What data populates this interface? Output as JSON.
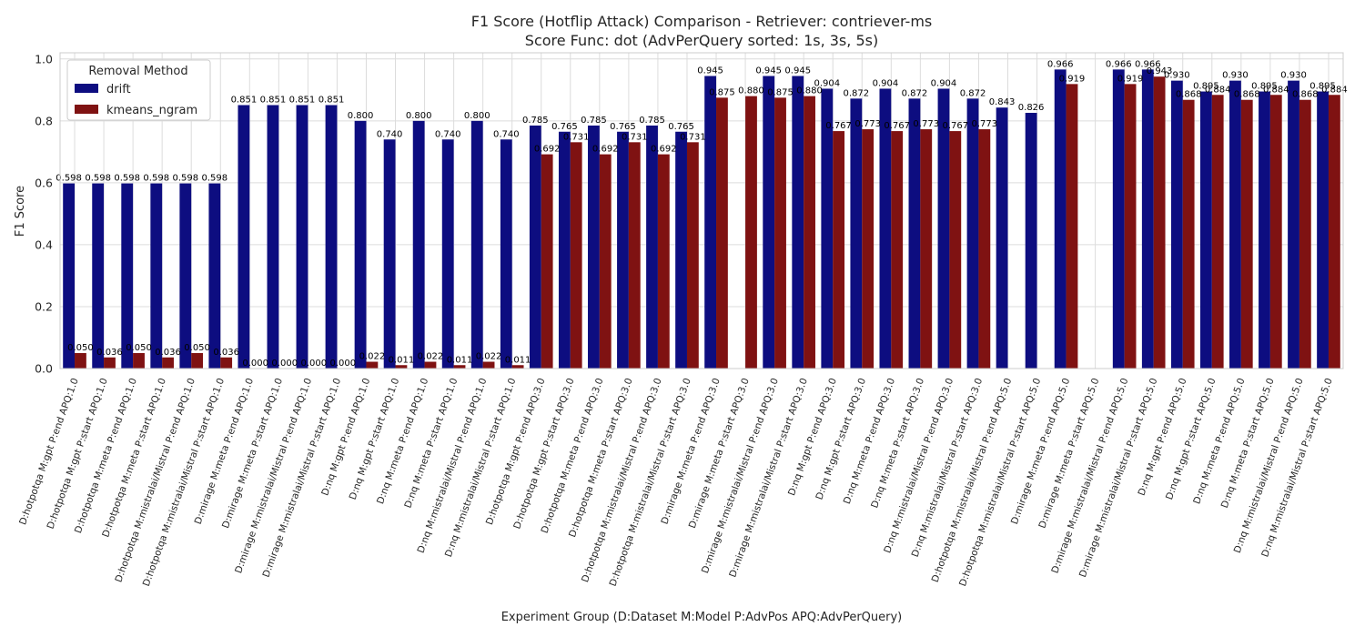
{
  "chart_data": {
    "type": "bar",
    "title": "F1 Score (Hotflip Attack) Comparison - Retriever: contriever-ms",
    "subtitle": "Score Func: dot (AdvPerQuery sorted: 1s, 3s, 5s)",
    "xlabel": "Experiment Group (D:Dataset M:Model P:AdvPos APQ:AdvPerQuery)",
    "ylabel": "F1 Score",
    "ylim": [
      0,
      1.02
    ],
    "yticks": [
      "0.0",
      "0.2",
      "0.4",
      "0.6",
      "0.8",
      "1.0"
    ],
    "grid": true,
    "legend": {
      "title": "Removal Method",
      "position": "top-left"
    },
    "categories": [
      "D:hotpotqa M:gpt P:end APQ:1.0",
      "D:hotpotqa M:gpt P:start APQ:1.0",
      "D:hotpotqa M:meta P:end APQ:1.0",
      "D:hotpotqa M:meta P:start APQ:1.0",
      "D:hotpotqa M:mistralai/Mistral P:end APQ:1.0",
      "D:hotpotqa M:mistralai/Mistral P:start APQ:1.0",
      "D:mirage M:meta P:end APQ:1.0",
      "D:mirage M:meta P:start APQ:1.0",
      "D:mirage M:mistralai/Mistral P:end APQ:1.0",
      "D:mirage M:mistralai/Mistral P:start APQ:1.0",
      "D:nq M:gpt P:end APQ:1.0",
      "D:nq M:gpt P:start APQ:1.0",
      "D:nq M:meta P:end APQ:1.0",
      "D:nq M:meta P:start APQ:1.0",
      "D:nq M:mistralai/Mistral P:end APQ:1.0",
      "D:nq M:mistralai/Mistral P:start APQ:1.0",
      "D:hotpotqa M:gpt P:end APQ:3.0",
      "D:hotpotqa M:gpt P:start APQ:3.0",
      "D:hotpotqa M:meta P:end APQ:3.0",
      "D:hotpotqa M:meta P:start APQ:3.0",
      "D:hotpotqa M:mistralai/Mistral P:end APQ:3.0",
      "D:hotpotqa M:mistralai/Mistral P:start APQ:3.0",
      "D:mirage M:meta P:end APQ:3.0",
      "D:mirage M:meta P:start APQ:3.0",
      "D:mirage M:mistralai/Mistral P:end APQ:3.0",
      "D:mirage M:mistralai/Mistral P:start APQ:3.0",
      "D:nq M:gpt P:end APQ:3.0",
      "D:nq M:gpt P:start APQ:3.0",
      "D:nq M:meta P:end APQ:3.0",
      "D:nq M:meta P:start APQ:3.0",
      "D:nq M:mistralai/Mistral P:end APQ:3.0",
      "D:nq M:mistralai/Mistral P:start APQ:3.0",
      "D:hotpotqa M:mistralai/Mistral P:end APQ:5.0",
      "D:hotpotqa M:mistralai/Mistral P:start APQ:5.0",
      "D:mirage M:meta P:end APQ:5.0",
      "D:mirage M:meta P:start APQ:5.0",
      "D:mirage M:mistralai/Mistral P:end APQ:5.0",
      "D:mirage M:mistralai/Mistral P:start APQ:5.0",
      "D:nq M:gpt P:end APQ:5.0",
      "D:nq M:gpt P:start APQ:5.0",
      "D:nq M:meta P:end APQ:5.0",
      "D:nq M:meta P:start APQ:5.0",
      "D:nq M:mistralai/Mistral P:end APQ:5.0",
      "D:nq M:mistralai/Mistral P:start APQ:5.0"
    ],
    "series": [
      {
        "name": "drift",
        "color": "#0d0d80",
        "values": [
          0.598,
          0.598,
          0.598,
          0.598,
          0.598,
          0.598,
          0.851,
          0.851,
          0.851,
          0.851,
          0.8,
          0.74,
          0.8,
          0.74,
          0.8,
          0.74,
          0.785,
          0.765,
          0.785,
          0.765,
          0.785,
          0.765,
          0.945,
          null,
          0.945,
          0.945,
          0.904,
          0.872,
          0.904,
          0.872,
          0.904,
          0.872,
          0.843,
          0.826,
          0.966,
          null,
          0.966,
          0.966,
          0.93,
          0.895,
          0.93,
          0.895,
          0.93,
          0.895
        ],
        "labels": [
          "0.598",
          "0.598",
          "0.598",
          "0.598",
          "0.598",
          "0.598",
          "0.851",
          "0.851",
          "0.851",
          "0.851",
          "0.800",
          "0.740",
          "0.800",
          "0.740",
          "0.800",
          "0.740",
          "0.785",
          "0.765",
          "0.785",
          "0.765",
          "0.785",
          "0.765",
          "0.945",
          "",
          "0.945",
          "0.945",
          "0.904",
          "0.872",
          "0.904",
          "0.872",
          "0.904",
          "0.872",
          "0.843",
          "0.826",
          "0.966",
          "",
          "0.966",
          "0.966",
          "0.930",
          "0.895",
          "0.930",
          "0.895",
          "0.930",
          "0.895"
        ]
      },
      {
        "name": "kmeans_ngram",
        "color": "#7f1212",
        "values": [
          0.05,
          0.036,
          0.05,
          0.036,
          0.05,
          0.036,
          0.0,
          0.0,
          0.0,
          0.0,
          0.022,
          0.011,
          0.022,
          0.011,
          0.022,
          0.011,
          0.692,
          0.731,
          0.692,
          0.731,
          0.692,
          0.731,
          0.875,
          0.88,
          0.875,
          0.88,
          0.767,
          0.773,
          0.767,
          0.773,
          0.767,
          0.773,
          null,
          null,
          0.919,
          null,
          0.919,
          0.943,
          0.868,
          0.884,
          0.868,
          0.884,
          0.868,
          0.884
        ],
        "labels": [
          "0.050",
          "0.036",
          "0.050",
          "0.036",
          "0.050",
          "0.036",
          "0.000",
          "0.000",
          "0.000",
          "0.000",
          "0.022",
          "0.011",
          "0.022",
          "0.011",
          "0.022",
          "0.011",
          "0.692",
          "0.731",
          "0.692",
          "0.731",
          "0.692",
          "0.731",
          "0.875",
          "0.880",
          "0.875",
          "0.880",
          "0.767",
          "0.773",
          "0.767",
          "0.773",
          "0.767",
          "0.773",
          "",
          "",
          "0.919",
          "",
          "0.919",
          "0.943",
          "0.868",
          "0.884",
          "0.868",
          "0.884",
          "0.868",
          "0.884"
        ]
      }
    ]
  }
}
